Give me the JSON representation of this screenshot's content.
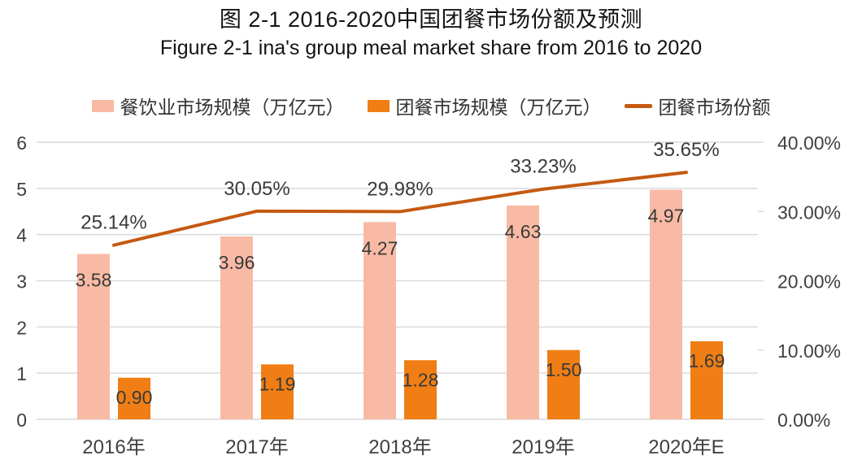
{
  "header": {
    "title_cn": "图 2-1 2016-2020中国团餐市场份额及预测",
    "title_en": "Figure 2-1 ina's group meal market share from 2016 to 2020"
  },
  "legend": [
    {
      "label": "餐饮业市场规模（万亿元）",
      "marker": "square",
      "color": "#F8BAA4"
    },
    {
      "label": "团餐市场规模（万亿元）",
      "marker": "square",
      "color": "#F07E14"
    },
    {
      "label": "团餐市场份额",
      "marker": "line",
      "color": "#C55A11"
    }
  ],
  "chart_data": {
    "type": "bar",
    "subtype": "grouped-bars-with-line",
    "title": "图 2-1 2016-2020中国团餐市场份额及预测",
    "subtitle": "Figure 2-1 ina's group meal market share from 2016 to 2020",
    "categories": [
      "2016年",
      "2017年",
      "2018年",
      "2019年",
      "2020年E"
    ],
    "series": [
      {
        "name": "餐饮业市场规模（万亿元）",
        "type": "bar",
        "axis": "left",
        "color": "#F8BAA4",
        "values": [
          3.58,
          3.96,
          4.27,
          4.63,
          4.97
        ],
        "labels": [
          "3.58",
          "3.96",
          "4.27",
          "4.63",
          "4.97"
        ]
      },
      {
        "name": "团餐市场规模（万亿元）",
        "type": "bar",
        "axis": "left",
        "color": "#F07E14",
        "values": [
          0.9,
          1.19,
          1.28,
          1.5,
          1.69
        ],
        "labels": [
          "0.90",
          "1.19",
          "1.28",
          "1.50",
          "1.69"
        ]
      },
      {
        "name": "团餐市场份额",
        "type": "line",
        "axis": "right",
        "color": "#C55A11",
        "values": [
          25.14,
          30.05,
          29.98,
          33.23,
          35.65
        ],
        "labels": [
          "25.14%",
          "30.05%",
          "29.98%",
          "33.23%",
          "35.65%"
        ]
      }
    ],
    "left_axis": {
      "min": 0,
      "max": 6,
      "ticks": [
        "0",
        "1",
        "2",
        "3",
        "4",
        "5",
        "6"
      ]
    },
    "right_axis": {
      "min": 0,
      "max": 40,
      "ticks": [
        "0.00%",
        "10.00%",
        "20.00%",
        "30.00%",
        "40.00%"
      ]
    },
    "grid": true,
    "legend_position": "top",
    "colors": {
      "gridline": "#D9D9D9",
      "axis_text": "#404040",
      "data_label_text": "#3A3A3A",
      "title_text": "#141414"
    }
  }
}
